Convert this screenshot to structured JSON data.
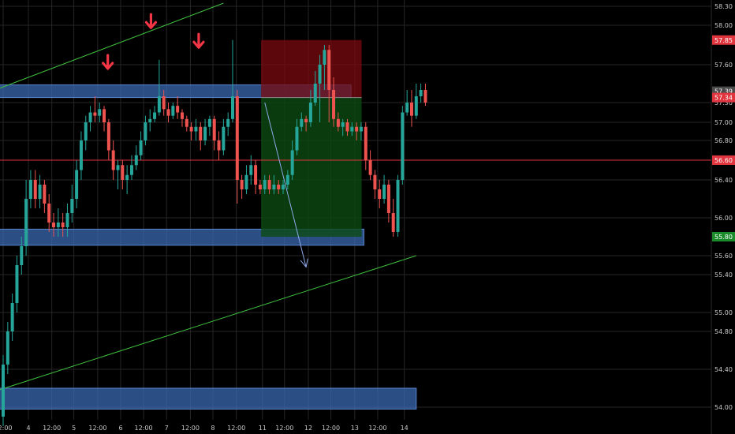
{
  "chart_data": {
    "type": "candlestick",
    "y_axis": {
      "min": 53.98,
      "max": 58.3,
      "ticks": [
        "58.30",
        "58.00",
        "57.60",
        "57.30",
        "57.00",
        "56.80",
        "56.40",
        "56.00",
        "55.60",
        "55.40",
        "55.00",
        "54.80",
        "54.40",
        "54.00"
      ]
    },
    "x_axis": {
      "labels": [
        {
          "t": 0.0,
          "text": "12:00"
        },
        {
          "t": 5.5,
          "text": "4"
        },
        {
          "t": 10.6,
          "text": "12:00"
        },
        {
          "t": 15.4,
          "text": "5"
        },
        {
          "t": 20.6,
          "text": "12:00"
        },
        {
          "t": 25.6,
          "text": "6"
        },
        {
          "t": 30.6,
          "text": "12:00"
        },
        {
          "t": 35.6,
          "text": "7"
        },
        {
          "t": 40.8,
          "text": "12:00"
        },
        {
          "t": 45.7,
          "text": "8"
        },
        {
          "t": 50.8,
          "text": "12:00"
        },
        {
          "t": 56.5,
          "text": "11"
        },
        {
          "t": 61.3,
          "text": "12:00"
        },
        {
          "t": 66.5,
          "text": "12"
        },
        {
          "t": 71.4,
          "text": "12:00"
        },
        {
          "t": 76.6,
          "text": "13"
        },
        {
          "t": 81.6,
          "text": "12:00"
        },
        {
          "t": 87.4,
          "text": "14"
        }
      ]
    },
    "price_tags": [
      {
        "value": 57.85,
        "text": "57.85",
        "color": "#e0353f"
      },
      {
        "value": 57.39,
        "text": "57.39",
        "color": "#4a4a4a"
      },
      {
        "value": 57.34,
        "text": "57.34",
        "color": "#e0353f"
      },
      {
        "value": 56.6,
        "text": "56.60",
        "color": "#e0353f"
      },
      {
        "value": 55.8,
        "text": "55.80",
        "color": "#1a8a2a"
      }
    ],
    "candles": [
      [
        53.9,
        54.45,
        53.8,
        54.55
      ],
      [
        54.45,
        54.8,
        54.35,
        54.9
      ],
      [
        54.8,
        55.1,
        54.7,
        55.2
      ],
      [
        55.1,
        55.5,
        55.0,
        55.6
      ],
      [
        55.5,
        55.7,
        55.4,
        55.8
      ],
      [
        55.7,
        56.2,
        55.6,
        56.4
      ],
      [
        56.2,
        56.4,
        56.1,
        56.5
      ],
      [
        56.4,
        56.2,
        56.1,
        56.5
      ],
      [
        56.2,
        56.35,
        56.1,
        56.45
      ],
      [
        56.35,
        56.15,
        56.05,
        56.4
      ],
      [
        56.15,
        55.95,
        55.85,
        56.25
      ],
      [
        55.95,
        55.9,
        55.8,
        56.05
      ],
      [
        55.9,
        55.95,
        55.8,
        56.1
      ],
      [
        55.95,
        55.9,
        55.8,
        56.05
      ],
      [
        55.9,
        56.05,
        55.8,
        56.15
      ],
      [
        56.05,
        56.2,
        55.95,
        56.35
      ],
      [
        56.2,
        56.5,
        56.1,
        56.6
      ],
      [
        56.5,
        56.8,
        56.4,
        56.9
      ],
      [
        56.8,
        57.0,
        56.7,
        57.1
      ],
      [
        57.0,
        57.15,
        56.9,
        57.25
      ],
      [
        57.15,
        57.1,
        57.0,
        57.35
      ],
      [
        57.1,
        57.2,
        57.0,
        57.3
      ],
      [
        57.2,
        57.0,
        56.9,
        57.25
      ],
      [
        57.0,
        56.7,
        56.6,
        57.05
      ],
      [
        56.7,
        56.5,
        56.4,
        56.8
      ],
      [
        56.5,
        56.55,
        56.3,
        56.6
      ],
      [
        56.55,
        56.4,
        56.3,
        56.6
      ],
      [
        56.4,
        56.45,
        56.25,
        56.55
      ],
      [
        56.45,
        56.55,
        56.4,
        56.65
      ],
      [
        56.55,
        56.65,
        56.5,
        56.75
      ],
      [
        56.65,
        56.8,
        56.6,
        56.9
      ],
      [
        56.8,
        57.0,
        56.75,
        57.1
      ],
      [
        57.0,
        57.05,
        56.9,
        57.2
      ],
      [
        57.05,
        57.15,
        57.0,
        57.25
      ],
      [
        57.15,
        57.35,
        57.1,
        57.65
      ],
      [
        57.35,
        57.2,
        57.1,
        57.4
      ],
      [
        57.2,
        57.1,
        57.0,
        57.3
      ],
      [
        57.1,
        57.25,
        57.05,
        57.3
      ],
      [
        57.25,
        57.15,
        57.05,
        57.35
      ],
      [
        57.15,
        57.05,
        56.95,
        57.2
      ],
      [
        57.05,
        56.95,
        56.9,
        57.1
      ],
      [
        56.95,
        56.9,
        56.8,
        57.0
      ],
      [
        56.9,
        56.95,
        56.8,
        57.05
      ],
      [
        56.95,
        56.8,
        56.7,
        57.0
      ],
      [
        56.8,
        56.95,
        56.75,
        57.05
      ],
      [
        56.95,
        57.05,
        56.85,
        57.1
      ],
      [
        57.05,
        56.8,
        56.7,
        57.1
      ],
      [
        56.8,
        56.7,
        56.6,
        56.9
      ],
      [
        56.7,
        56.95,
        56.65,
        57.05
      ],
      [
        56.95,
        57.05,
        56.85,
        57.15
      ],
      [
        57.05,
        57.35,
        57.0,
        57.85
      ],
      [
        57.35,
        56.4,
        56.15,
        57.4
      ],
      [
        56.4,
        56.3,
        56.2,
        56.45
      ],
      [
        56.3,
        56.45,
        56.25,
        56.55
      ],
      [
        56.45,
        56.55,
        56.35,
        56.65
      ],
      [
        56.55,
        56.35,
        56.25,
        56.6
      ],
      [
        56.35,
        56.3,
        56.25,
        56.4
      ],
      [
        56.3,
        56.4,
        56.25,
        56.45
      ],
      [
        56.4,
        56.3,
        56.25,
        56.45
      ],
      [
        56.3,
        56.35,
        56.25,
        56.45
      ],
      [
        56.35,
        56.3,
        56.25,
        56.4
      ],
      [
        56.3,
        56.35,
        56.25,
        56.4
      ],
      [
        56.35,
        56.45,
        56.3,
        56.5
      ],
      [
        56.45,
        56.7,
        56.4,
        56.8
      ],
      [
        56.7,
        56.95,
        56.65,
        57.05
      ],
      [
        56.95,
        57.05,
        56.9,
        57.15
      ],
      [
        57.05,
        57.0,
        56.9,
        57.1
      ],
      [
        57.0,
        57.3,
        56.95,
        57.4
      ],
      [
        57.3,
        57.45,
        57.25,
        57.55
      ],
      [
        57.45,
        57.6,
        57.0,
        57.7
      ],
      [
        57.6,
        57.75,
        57.4,
        57.8
      ],
      [
        57.75,
        57.4,
        57.0,
        57.8
      ],
      [
        57.4,
        57.05,
        56.95,
        57.5
      ],
      [
        57.05,
        56.95,
        56.9,
        57.15
      ],
      [
        56.95,
        57.0,
        56.85,
        57.05
      ],
      [
        57.0,
        56.9,
        56.85,
        57.05
      ],
      [
        56.9,
        56.95,
        56.85,
        57.0
      ],
      [
        56.95,
        56.9,
        56.8,
        57.0
      ],
      [
        56.9,
        56.95,
        56.8,
        57.0
      ],
      [
        56.95,
        56.6,
        56.5,
        57.0
      ],
      [
        56.6,
        56.45,
        56.4,
        56.7
      ],
      [
        56.45,
        56.3,
        56.2,
        56.5
      ],
      [
        56.3,
        56.2,
        56.1,
        56.4
      ],
      [
        56.2,
        56.35,
        56.15,
        56.45
      ],
      [
        56.35,
        56.05,
        55.95,
        56.4
      ],
      [
        56.05,
        55.85,
        55.8,
        56.2
      ],
      [
        55.85,
        56.4,
        55.8,
        56.45
      ],
      [
        56.4,
        57.15,
        56.35,
        57.25
      ],
      [
        57.15,
        57.3,
        57.1,
        57.4
      ],
      [
        57.3,
        57.1,
        56.95,
        57.4
      ],
      [
        57.1,
        57.35,
        57.05,
        57.45
      ],
      [
        57.35,
        57.4,
        57.3,
        57.45
      ],
      [
        57.4,
        57.3,
        57.25,
        57.45
      ]
    ],
    "zones": [
      {
        "from": 57.34,
        "to": 57.44,
        "t0": -1,
        "t1": 75.8,
        "color": "#3b6db8"
      },
      {
        "from": 55.71,
        "to": 55.88,
        "t0": -1,
        "t1": 78.6,
        "color": "#3b6db8"
      },
      {
        "from": 53.98,
        "to": 54.2,
        "t0": -1,
        "t1": 90.0,
        "color": "#3b6db8"
      }
    ],
    "position": {
      "t0": 56.2,
      "t1": 78.1,
      "entry": 57.34,
      "stop": 57.85,
      "target": 55.8
    },
    "horizontal_lines": [
      {
        "value": 56.6,
        "color": "#e0353f"
      }
    ],
    "trend_lines": [
      {
        "t0": -1,
        "v0": 57.41,
        "t1": 48.0,
        "v1": 58.35,
        "color": "#3fbf3f"
      },
      {
        "t0": -1,
        "v0": 54.18,
        "t1": 90.0,
        "v1": 55.6,
        "color": "#3fbf3f"
      }
    ],
    "projection_arrow": {
      "t0": 57.0,
      "v0": 57.3,
      "t1": 66.0,
      "v1": 55.48,
      "color": "#8fa8e8"
    },
    "down_markers": [
      {
        "t": 22.8,
        "v": 57.55
      },
      {
        "t": 32.2,
        "v": 57.95
      },
      {
        "t": 42.6,
        "v": 57.75
      }
    ]
  }
}
